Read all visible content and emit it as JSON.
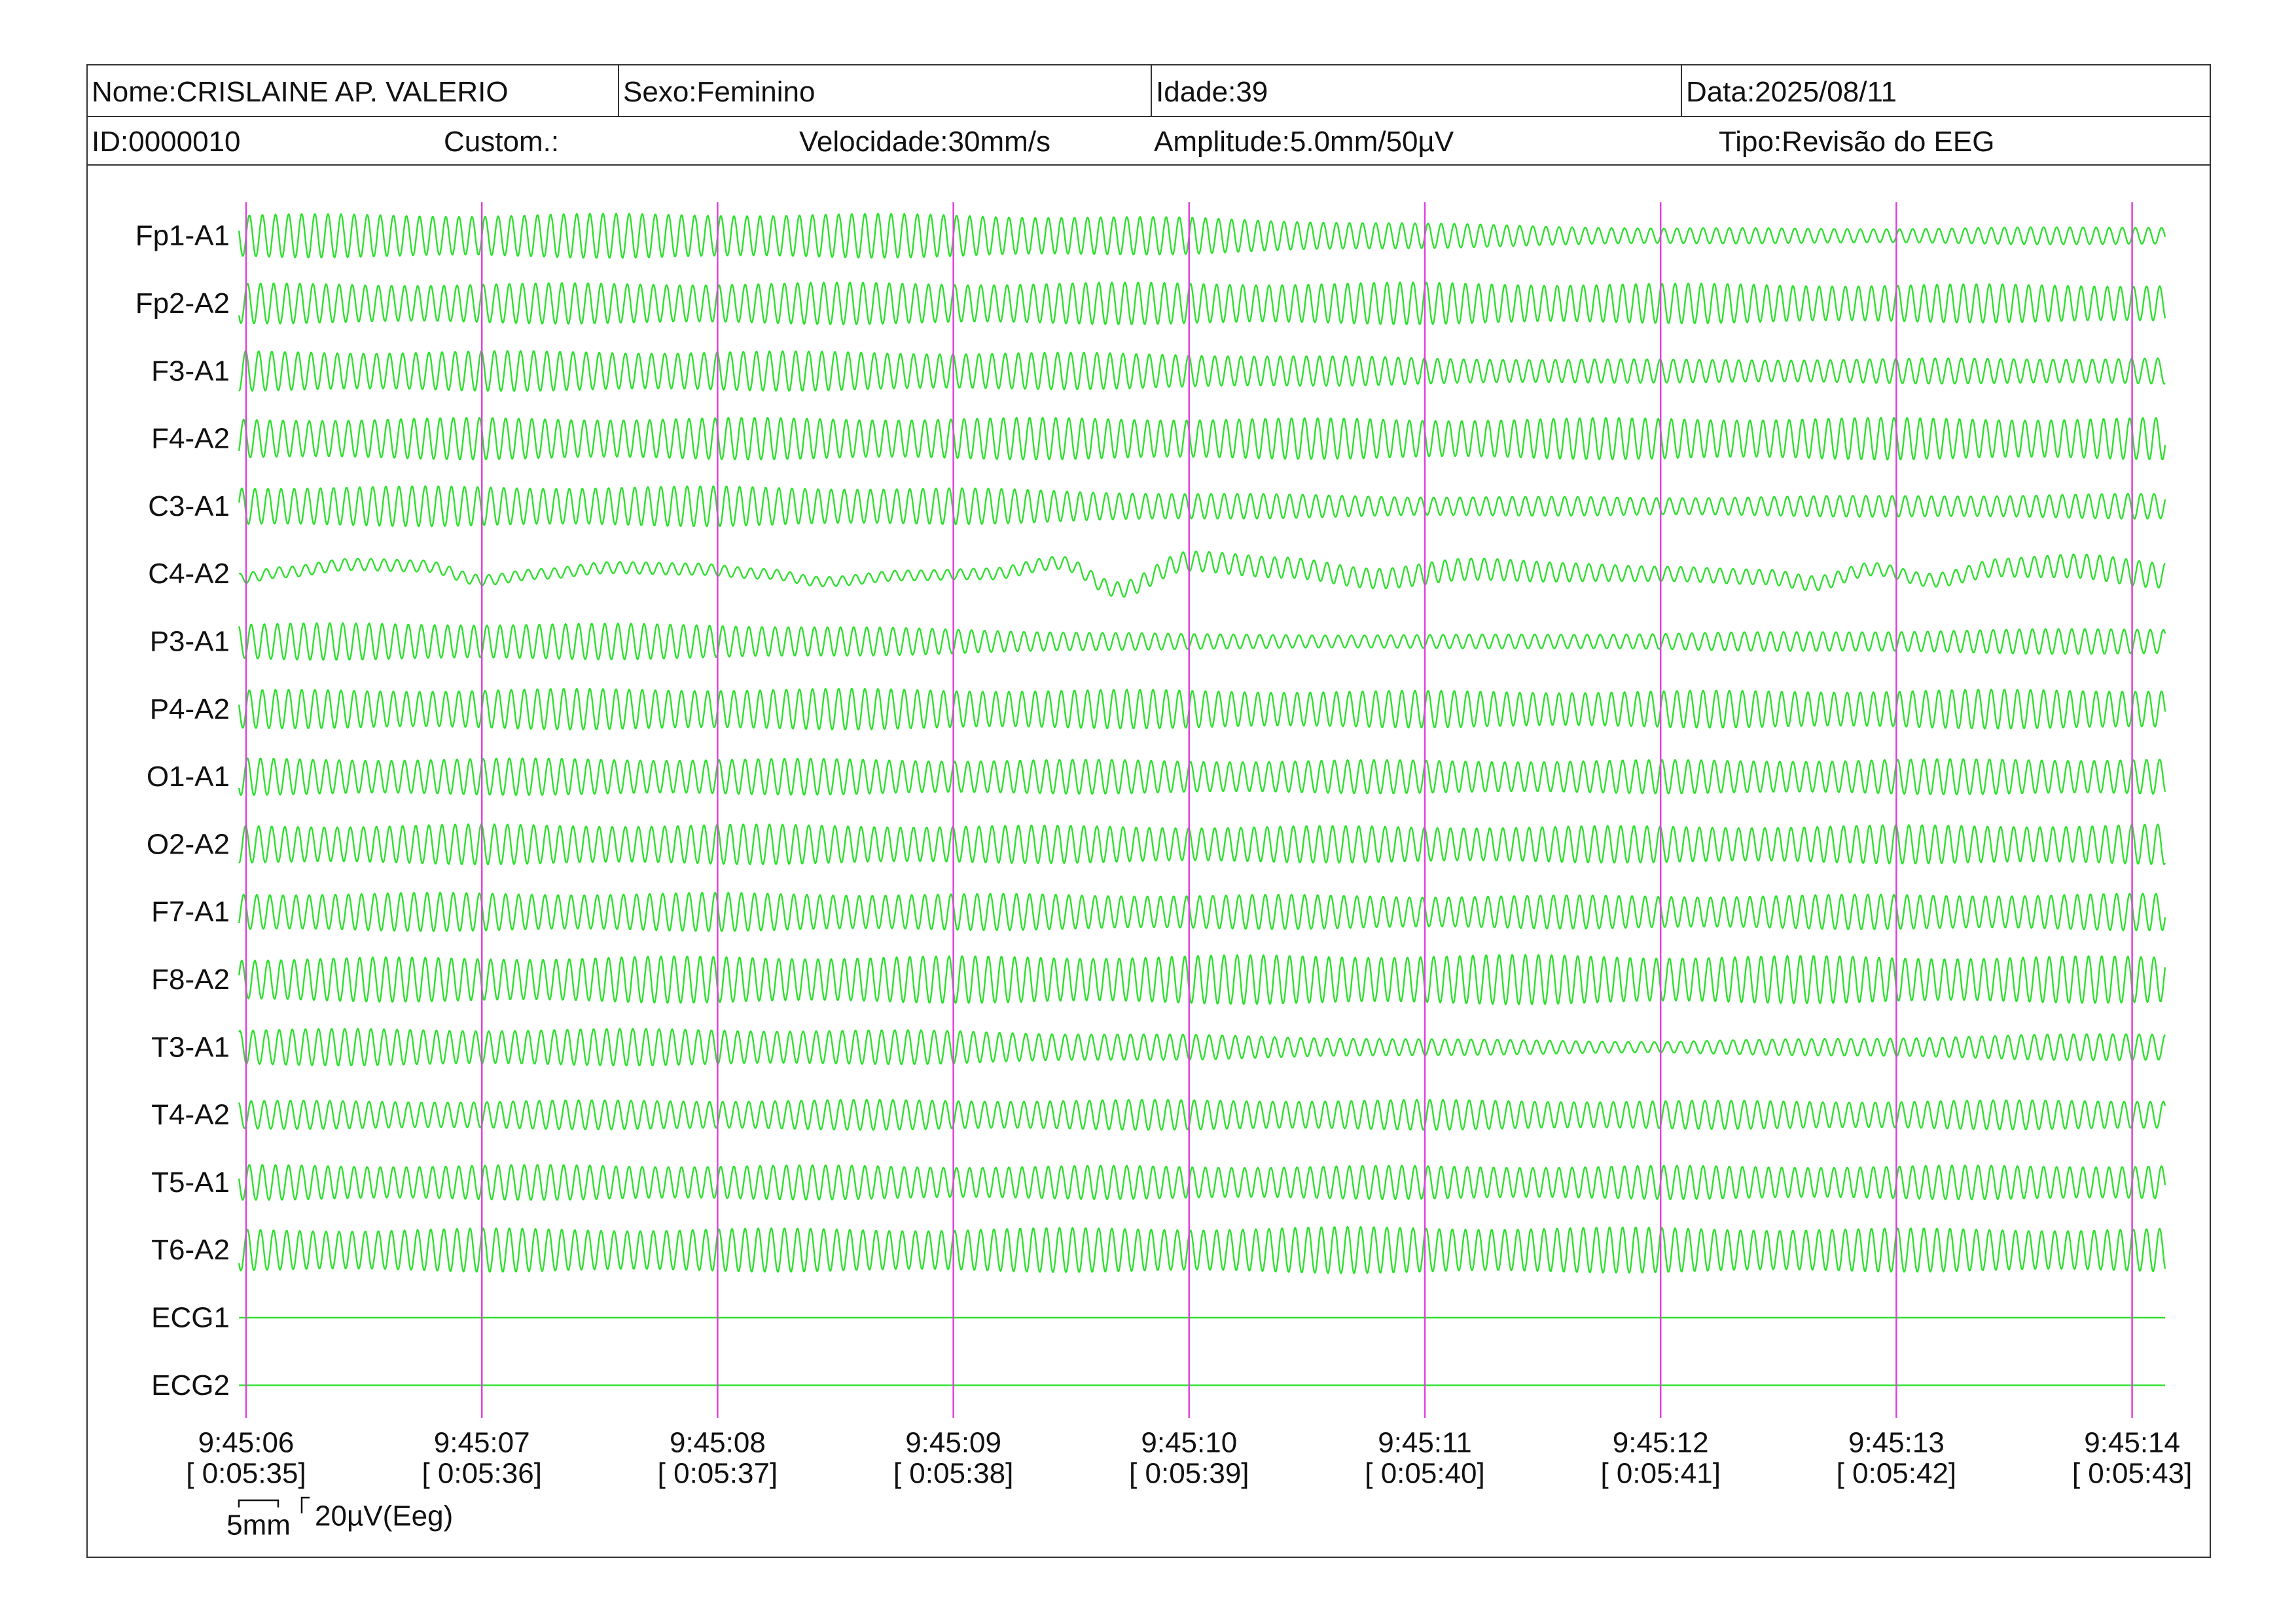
{
  "header": {
    "name": "Nome:CRISLAINE AP. VALERIO",
    "sex": "Sexo:Feminino",
    "age": "Idade:39",
    "date": "Data:2025/08/11",
    "id": "ID:0000010",
    "custom": "Custom.:",
    "speed": "Velocidade:30mm/s",
    "amplitude": "Amplitude:5.0mm/50µV",
    "type": "Tipo:Revisão do EEG"
  },
  "calibration": {
    "time_label": "5mm",
    "amplitude_label": "20µV(Eeg)"
  },
  "colors": {
    "trace": "#2ee02e",
    "second_marker": "#e040e0",
    "text": "#111111",
    "border": "#333333"
  },
  "chart_data": {
    "type": "line",
    "x_ticks": [
      {
        "time": "9:45:06",
        "elapsed": "[ 0:05:35]"
      },
      {
        "time": "9:45:07",
        "elapsed": "[ 0:05:36]"
      },
      {
        "time": "9:45:08",
        "elapsed": "[ 0:05:37]"
      },
      {
        "time": "9:45:09",
        "elapsed": "[ 0:05:38]"
      },
      {
        "time": "9:45:10",
        "elapsed": "[ 0:05:39]"
      },
      {
        "time": "9:45:11",
        "elapsed": "[ 0:05:40]"
      },
      {
        "time": "9:45:12",
        "elapsed": "[ 0:05:41]"
      },
      {
        "time": "9:45:13",
        "elapsed": "[ 0:05:42]"
      },
      {
        "time": "9:45:14",
        "elapsed": "[ 0:05:43]"
      }
    ],
    "x_range": [
      "9:45:05.97",
      "9:45:14.14"
    ],
    "dominant_frequency_hz": 18,
    "series": [
      {
        "name": "Fp1-A1",
        "amplitude_pp_uV": [
          52,
          52,
          54,
          52,
          44,
          30,
          19,
          18,
          22
        ]
      },
      {
        "name": "Fp2-A2",
        "amplitude_pp_uV": [
          48,
          48,
          50,
          50,
          50,
          50,
          48,
          46,
          46
        ]
      },
      {
        "name": "F3-A1",
        "amplitude_pp_uV": [
          48,
          48,
          48,
          46,
          42,
          32,
          28,
          30,
          32
        ]
      },
      {
        "name": "F4-A2",
        "amplitude_pp_uV": [
          48,
          50,
          50,
          50,
          50,
          48,
          50,
          50,
          50
        ]
      },
      {
        "name": "C3-A1",
        "amplitude_pp_uV": [
          48,
          48,
          48,
          44,
          32,
          24,
          22,
          26,
          30
        ]
      },
      {
        "name": "C4-A2",
        "amplitude_pp_uV": [
          14,
          14,
          14,
          12,
          24,
          28,
          20,
          16,
          32
        ],
        "slow_wave_uV": [
          [
            "9:45:05.97",
            -6
          ],
          [
            "9:45:06.15",
            2
          ],
          [
            "9:45:06.45",
            12
          ],
          [
            "9:45:06.75",
            10
          ],
          [
            "9:45:07.00",
            -8
          ],
          [
            "9:45:07.25",
            0
          ],
          [
            "9:45:07.55",
            8
          ],
          [
            "9:45:07.90",
            6
          ],
          [
            "9:45:08.20",
            0
          ],
          [
            "9:45:08.45",
            -10
          ],
          [
            "9:45:08.80",
            -2
          ],
          [
            "9:45:09.15",
            0
          ],
          [
            "9:45:09.45",
            14
          ],
          [
            "9:45:09.70",
            -20
          ],
          [
            "9:45:10.00",
            16
          ],
          [
            "9:45:10.40",
            8
          ],
          [
            "9:45:10.80",
            -6
          ],
          [
            "9:45:11.20",
            6
          ],
          [
            "9:45:11.60",
            2
          ],
          [
            "9:45:12.00",
            0
          ],
          [
            "9:45:12.45",
            -4
          ],
          [
            "9:45:12.65",
            -12
          ],
          [
            "9:45:12.90",
            6
          ],
          [
            "9:45:13.15",
            -8
          ],
          [
            "9:45:13.45",
            8
          ],
          [
            "9:45:13.75",
            10
          ],
          [
            "9:45:14.14",
            -2
          ]
        ]
      },
      {
        "name": "P3-A1",
        "amplitude_pp_uV": [
          44,
          44,
          42,
          30,
          18,
          16,
          20,
          26,
          32
        ]
      },
      {
        "name": "P4-A2",
        "amplitude_pp_uV": [
          46,
          48,
          50,
          48,
          46,
          44,
          44,
          46,
          48
        ]
      },
      {
        "name": "O1-A1",
        "amplitude_pp_uV": [
          44,
          44,
          44,
          42,
          40,
          40,
          40,
          42,
          44
        ]
      },
      {
        "name": "O2-A2",
        "amplitude_pp_uV": [
          46,
          48,
          48,
          46,
          44,
          44,
          44,
          46,
          48
        ]
      },
      {
        "name": "F7-A1",
        "amplitude_pp_uV": [
          46,
          46,
          46,
          44,
          42,
          40,
          40,
          42,
          44
        ]
      },
      {
        "name": "F8-A2",
        "amplitude_pp_uV": [
          52,
          54,
          56,
          56,
          58,
          60,
          58,
          56,
          56
        ]
      },
      {
        "name": "T3-A1",
        "amplitude_pp_uV": [
          44,
          44,
          44,
          40,
          30,
          20,
          14,
          24,
          34
        ]
      },
      {
        "name": "T4-A2",
        "amplitude_pp_uV": [
          34,
          34,
          36,
          36,
          36,
          36,
          34,
          34,
          36
        ]
      },
      {
        "name": "T5-A1",
        "amplitude_pp_uV": [
          42,
          42,
          42,
          40,
          40,
          40,
          40,
          40,
          42
        ]
      },
      {
        "name": "T6-A2",
        "amplitude_pp_uV": [
          50,
          52,
          52,
          52,
          54,
          56,
          54,
          52,
          52
        ]
      },
      {
        "name": "ECG1",
        "amplitude_pp_uV": [
          0,
          0,
          0,
          0,
          0,
          0,
          0,
          0,
          0
        ]
      },
      {
        "name": "ECG2",
        "amplitude_pp_uV": [
          0,
          0,
          0,
          0,
          0,
          0,
          0,
          0,
          0
        ]
      }
    ]
  }
}
